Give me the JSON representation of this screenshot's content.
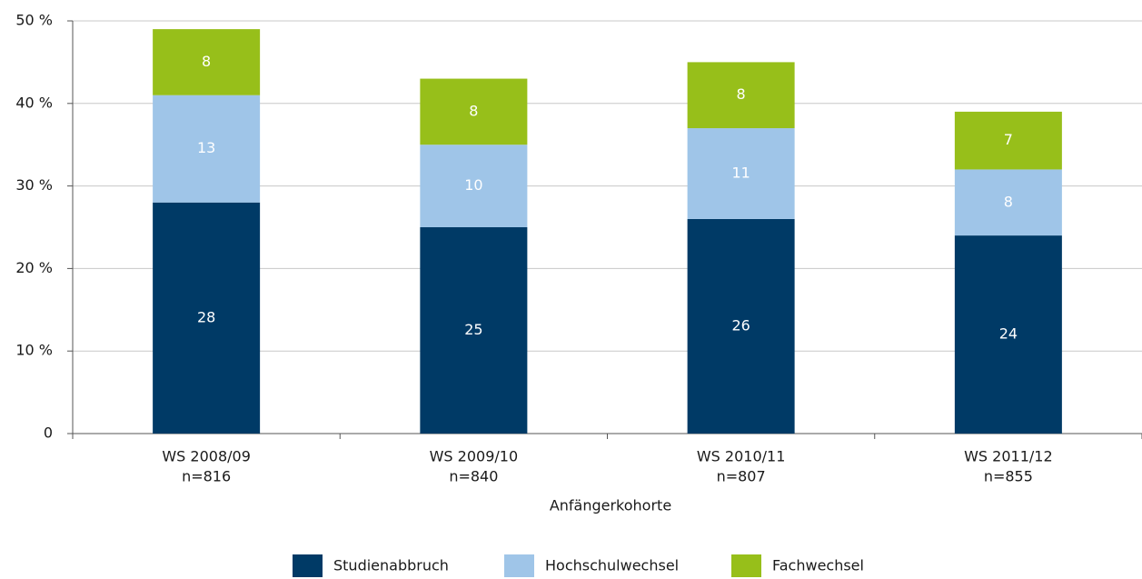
{
  "chart_data": {
    "type": "stacked_bar",
    "categories": [
      [
        "WS 2008/09",
        "n=816"
      ],
      [
        "WS 2009/10",
        "n=840"
      ],
      [
        "WS 2010/11",
        "n=807"
      ],
      [
        "WS 2011/12",
        "n=855"
      ]
    ],
    "x_label": "Anfängerkohorte",
    "series": [
      {
        "name": "Studienabbruch",
        "color": "#003a66",
        "values": [
          28,
          25,
          26,
          24
        ]
      },
      {
        "name": "Hochschulwechsel",
        "color": "#9fc5e8",
        "values": [
          13,
          10,
          11,
          8
        ]
      },
      {
        "name": "Fachwechsel",
        "color": "#97bf1a",
        "values": [
          8,
          8,
          8,
          7
        ]
      }
    ],
    "ylim": [
      0,
      50
    ],
    "yticks": [
      0,
      {
        "value": 10,
        "label": "10 %"
      },
      {
        "value": 20,
        "label": "20 %"
      },
      {
        "value": 30,
        "label": "30 %"
      },
      {
        "value": 40,
        "label": "40 %"
      },
      {
        "value": 50,
        "label": "50 %"
      }
    ],
    "grid": true,
    "legend": "bottom"
  }
}
